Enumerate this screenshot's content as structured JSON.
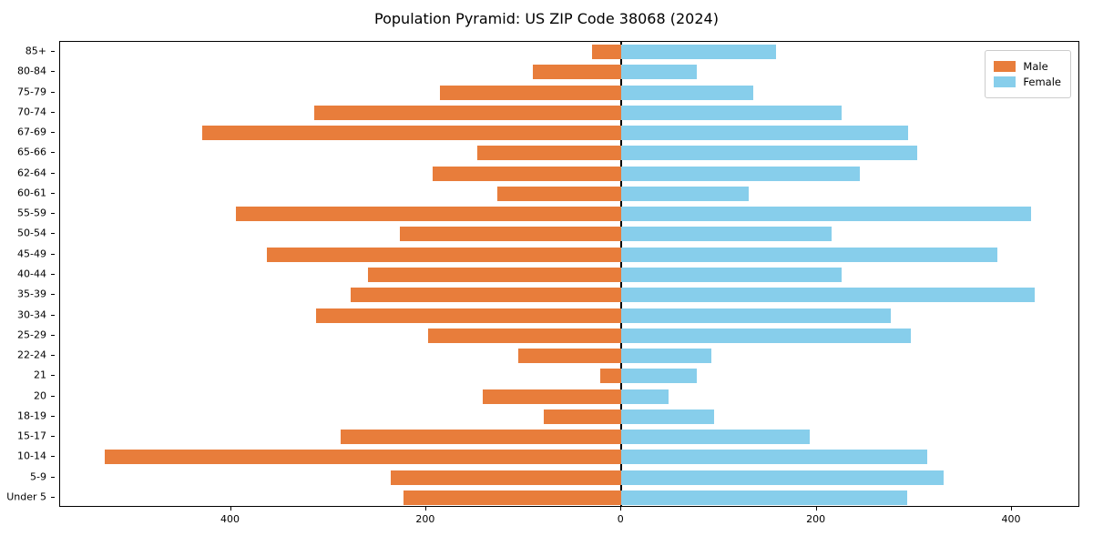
{
  "chart_data": {
    "type": "bar",
    "subtype": "population-pyramid",
    "title": "Population Pyramid: US ZIP Code 38068 (2024)",
    "xlabel": "",
    "ylabel": "",
    "grid": false,
    "legend_position": "upper right",
    "xlim": [
      -575,
      470
    ],
    "xticks": {
      "values": [
        -400,
        -200,
        0,
        200,
        400
      ],
      "labels": [
        "400",
        "200",
        "0",
        "200",
        "400"
      ]
    },
    "categories": [
      "85+",
      "80-84",
      "75-79",
      "70-74",
      "67-69",
      "65-66",
      "62-64",
      "60-61",
      "55-59",
      "50-54",
      "45-49",
      "40-44",
      "35-39",
      "30-34",
      "25-29",
      "22-24",
      "21",
      "20",
      "18-19",
      "15-17",
      "10-14",
      "5-9",
      "Under 5"
    ],
    "series": [
      {
        "name": "Male",
        "color": "#E87D3B",
        "values": [
          30,
          91,
          186,
          315,
          429,
          148,
          193,
          127,
          395,
          227,
          363,
          260,
          277,
          313,
          198,
          106,
          22,
          142,
          80,
          288,
          529,
          236,
          223
        ]
      },
      {
        "name": "Female",
        "color": "#87CEEB",
        "values": [
          158,
          77,
          135,
          226,
          294,
          303,
          244,
          130,
          420,
          215,
          385,
          226,
          423,
          276,
          296,
          92,
          77,
          48,
          95,
          193,
          313,
          330,
          293
        ]
      }
    ],
    "legend": [
      {
        "label": "Male",
        "color": "#E87D3B"
      },
      {
        "label": "Female",
        "color": "#87CEEB"
      }
    ]
  }
}
